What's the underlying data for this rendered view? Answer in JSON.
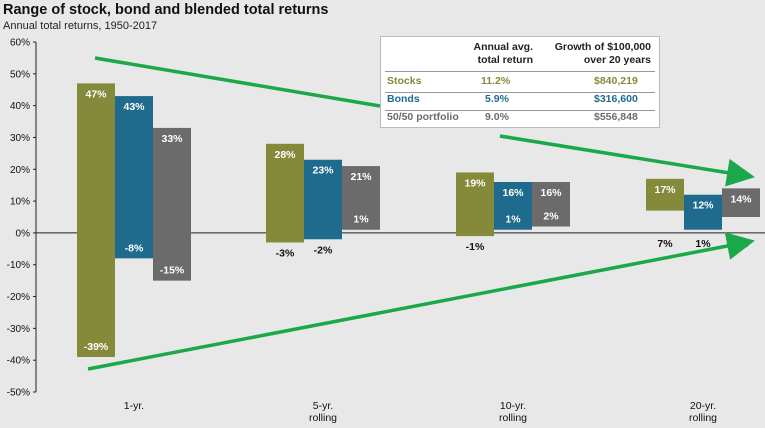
{
  "header": {
    "title": "Range of stock, bond and blended total returns",
    "subtitle": "Annual total returns, 1950-2017"
  },
  "legend_table": {
    "col1_header": "Annual avg. total return",
    "col2_header": "Growth of $100,000 over 20 years",
    "rows": [
      {
        "name": "Stocks",
        "avg": "11.2%",
        "growth": "$840,219",
        "color": "#848a3a"
      },
      {
        "name": "Bonds",
        "avg": "5.9%",
        "growth": "$316,600",
        "color": "#1f6b8e"
      },
      {
        "name": "50/50 portfolio",
        "avg": "9.0%",
        "growth": "$556,848",
        "color": "#6b6b6b"
      }
    ]
  },
  "colors": {
    "stocks": "#848a3a",
    "bonds": "#1f6b8e",
    "blend": "#6b6b6b",
    "arrow": "#1aa84a"
  },
  "chart_data": {
    "type": "bar",
    "subtype": "floating range",
    "title": "Range of stock, bond and blended total returns",
    "subtitle": "Annual total returns, 1950-2017",
    "categories": [
      "1-yr.",
      "5-yr. rolling",
      "10-yr. rolling",
      "20-yr. rolling"
    ],
    "ylim": [
      -50,
      60
    ],
    "yticks": [
      "-50%",
      "-40%",
      "-30%",
      "-20%",
      "-10%",
      "0%",
      "10%",
      "20%",
      "30%",
      "40%",
      "50%",
      "60%"
    ],
    "series": [
      {
        "name": "Stocks",
        "max": [
          47,
          28,
          19,
          17
        ],
        "min": [
          -39,
          -3,
          -1,
          7
        ],
        "max_labels": [
          "47%",
          "28%",
          "19%",
          "17%"
        ],
        "min_labels": [
          "-39%",
          "-3%",
          "-1%",
          "7%"
        ]
      },
      {
        "name": "Bonds",
        "max": [
          43,
          23,
          16,
          12
        ],
        "min": [
          -8,
          -2,
          1,
          1
        ],
        "max_labels": [
          "43%",
          "23%",
          "16%",
          "12%"
        ],
        "min_labels": [
          "-8%",
          "-2%",
          "1%",
          "1%"
        ]
      },
      {
        "name": "50/50 portfolio",
        "max": [
          33,
          21,
          16,
          14
        ],
        "min": [
          -15,
          1,
          2,
          5
        ],
        "max_labels": [
          "33%",
          "21%",
          "16%",
          "14%"
        ],
        "min_labels": [
          "-15%",
          "1%",
          "2%",
          "5%"
        ]
      }
    ]
  }
}
